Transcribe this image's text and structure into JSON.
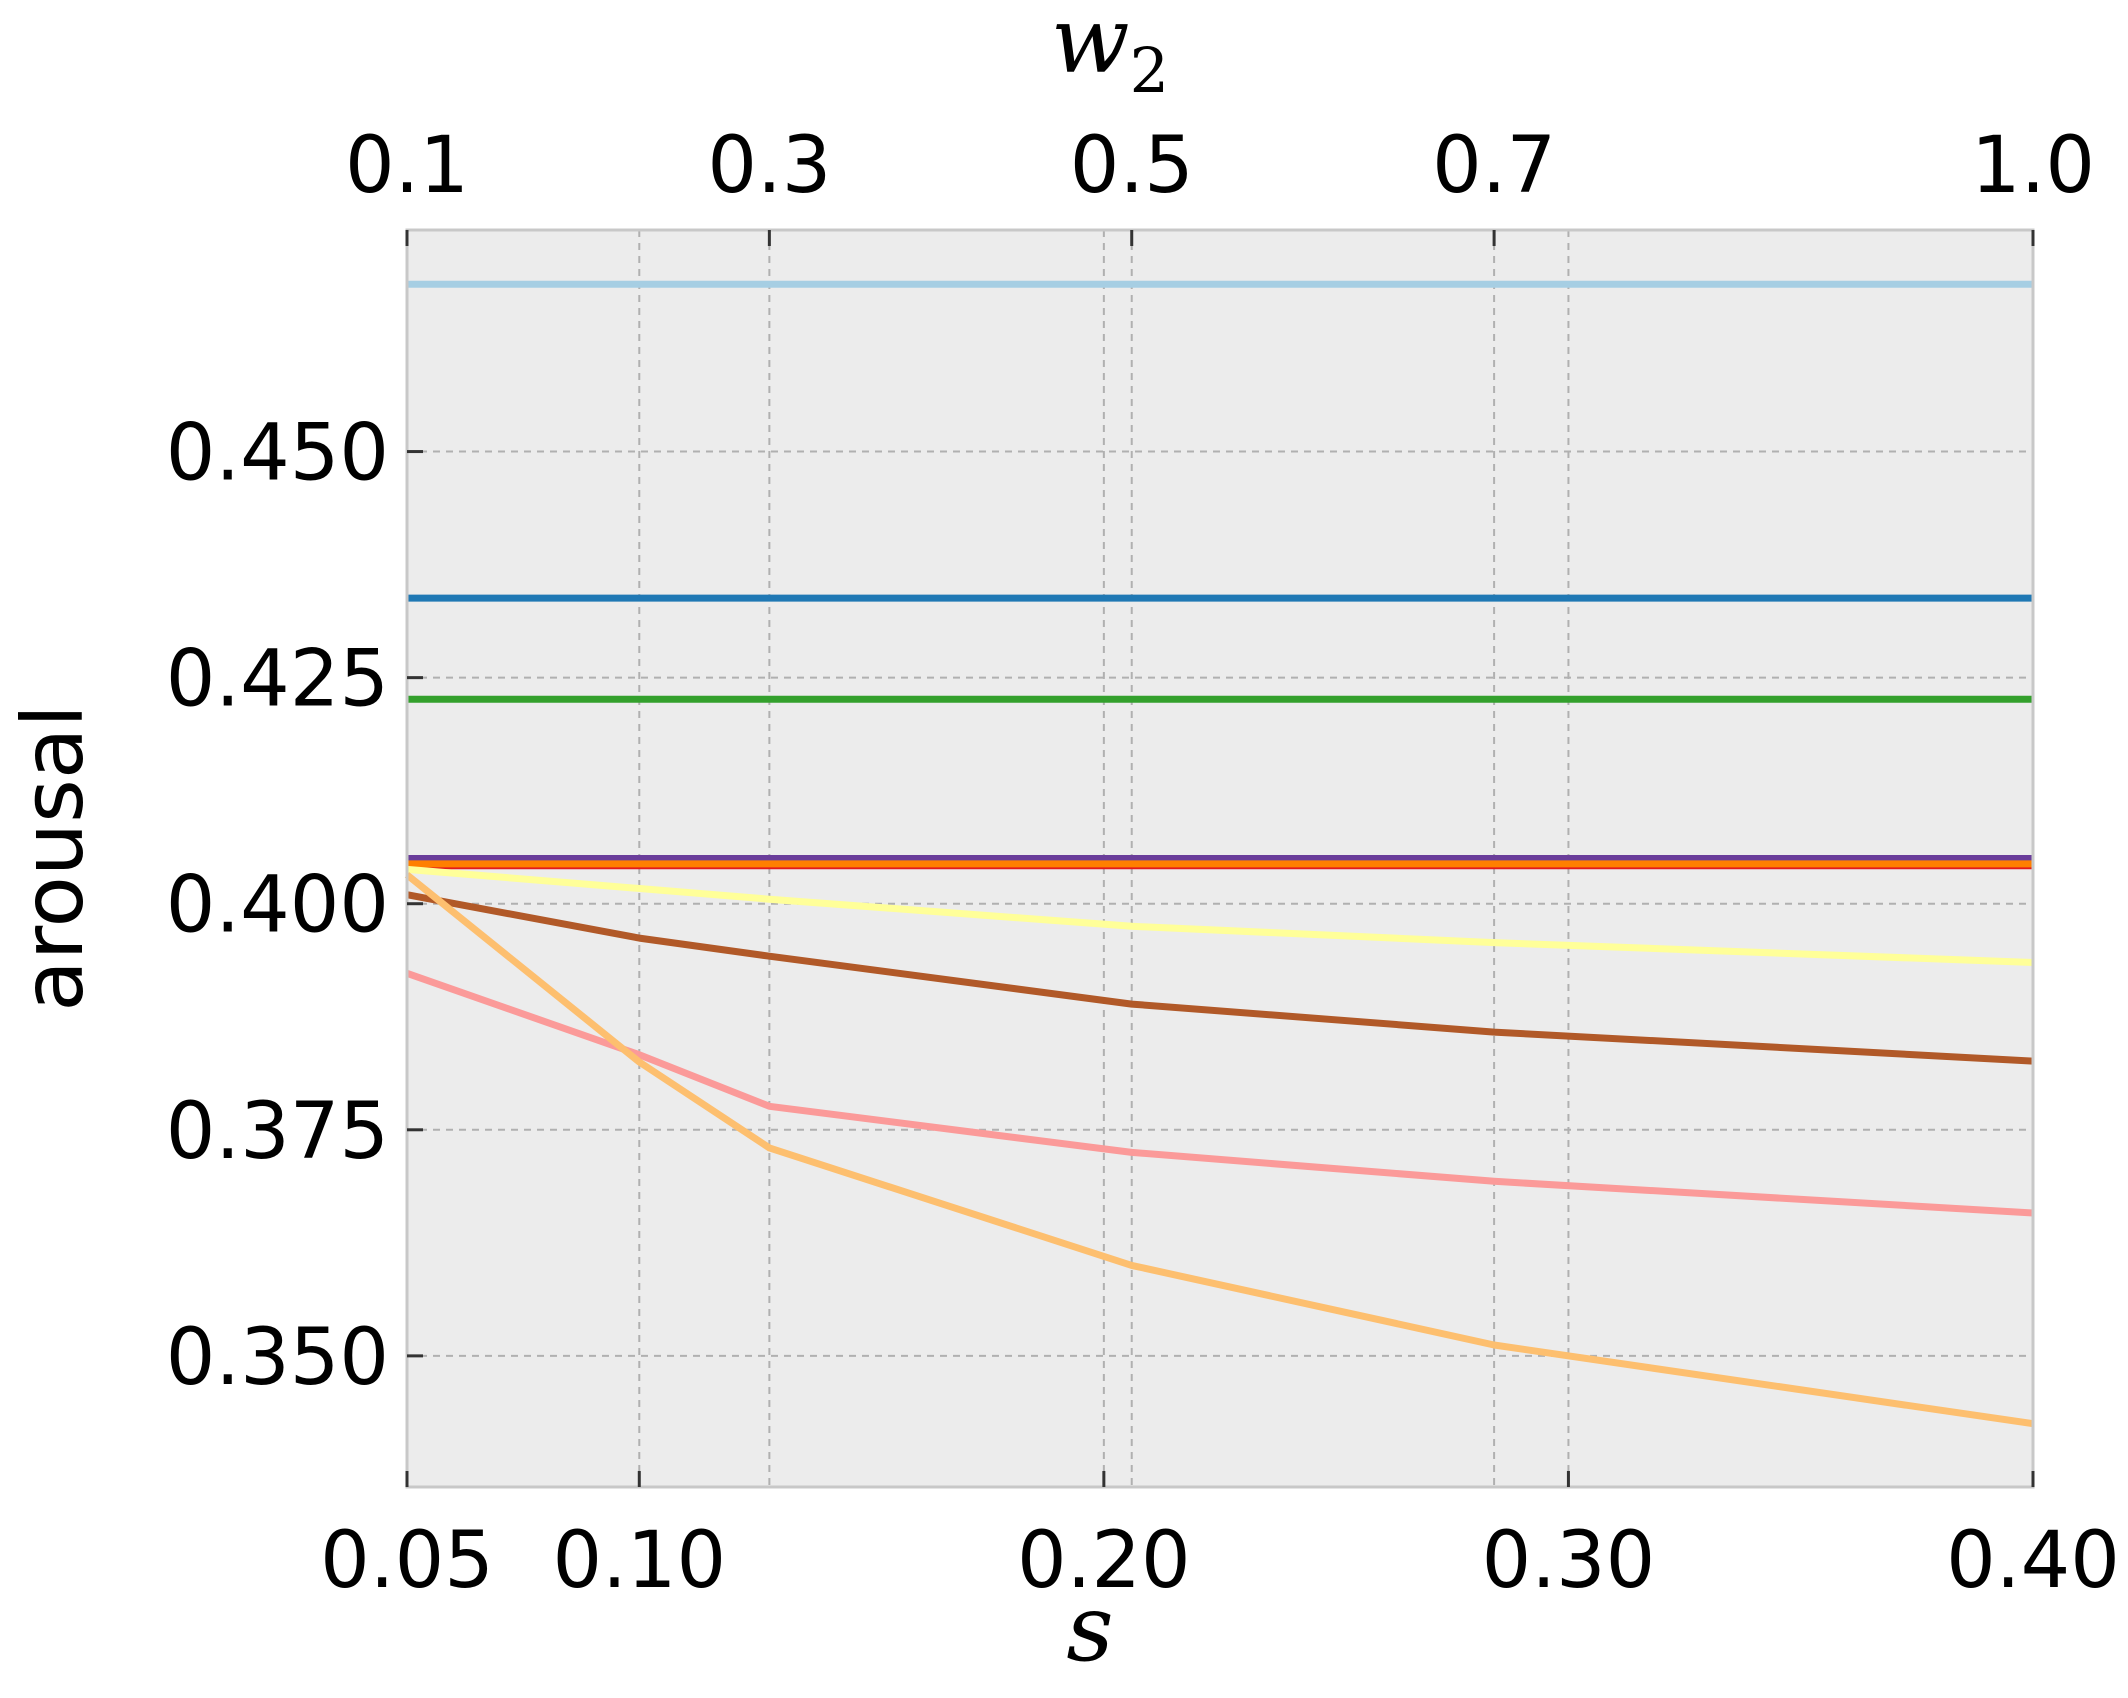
{
  "chart_data": {
    "type": "line",
    "xlabel": "s",
    "ylabel": "arousal",
    "top_xlabel_base": "w",
    "top_xlabel_sub": "2",
    "xlim": [
      0.05,
      0.4
    ],
    "ylim": [
      0.3355,
      0.4745
    ],
    "x_ticks": [
      0.05,
      0.1,
      0.2,
      0.3,
      0.4
    ],
    "x_tick_labels": [
      "0.05",
      "0.10",
      "0.20",
      "0.30",
      "0.40"
    ],
    "y_ticks": [
      0.35,
      0.375,
      0.4,
      0.425,
      0.45
    ],
    "y_tick_labels": [
      "0.350",
      "0.375",
      "0.400",
      "0.425",
      "0.450"
    ],
    "top_ticks_s": [
      0.05,
      0.128,
      0.206,
      0.284,
      0.4
    ],
    "top_tick_labels": [
      "0.1",
      "0.3",
      "0.5",
      "0.7",
      "1.0"
    ],
    "grid": true,
    "background": "#ececec",
    "series": [
      {
        "color": "#a6cee3",
        "x": [
          0.05,
          0.4
        ],
        "y": [
          0.4685,
          0.4685
        ]
      },
      {
        "color": "#1f78b4",
        "x": [
          0.05,
          0.4
        ],
        "y": [
          0.4338,
          0.4338
        ]
      },
      {
        "color": "#33a02c",
        "x": [
          0.05,
          0.4
        ],
        "y": [
          0.4226,
          0.4226
        ]
      },
      {
        "color": "#6a3d9a",
        "x": [
          0.05,
          0.4
        ],
        "y": [
          0.405,
          0.405
        ]
      },
      {
        "color": "#e31a1c",
        "x": [
          0.05,
          0.4
        ],
        "y": [
          0.4042,
          0.4042
        ]
      },
      {
        "color": "#ff7f00",
        "x": [
          0.05,
          0.4
        ],
        "y": [
          0.4044,
          0.4044
        ]
      },
      {
        "color": "#ffff99",
        "x": [
          0.05,
          0.128,
          0.206,
          0.284,
          0.4
        ],
        "y": [
          0.4038,
          0.4005,
          0.3975,
          0.3957,
          0.3935
        ]
      },
      {
        "color": "#b15928",
        "x": [
          0.05,
          0.1,
          0.128,
          0.206,
          0.284,
          0.4
        ],
        "y": [
          0.401,
          0.3962,
          0.3942,
          0.3889,
          0.3858,
          0.3826
        ]
      },
      {
        "color": "#fb9a99",
        "x": [
          0.05,
          0.1,
          0.128,
          0.206,
          0.284,
          0.4
        ],
        "y": [
          0.3923,
          0.3833,
          0.3776,
          0.3725,
          0.3693,
          0.3658
        ]
      },
      {
        "color": "#fdbf6f",
        "x": [
          0.05,
          0.1,
          0.128,
          0.206,
          0.284,
          0.4
        ],
        "y": [
          0.4032,
          0.3825,
          0.373,
          0.36,
          0.3512,
          0.3425
        ]
      }
    ]
  }
}
